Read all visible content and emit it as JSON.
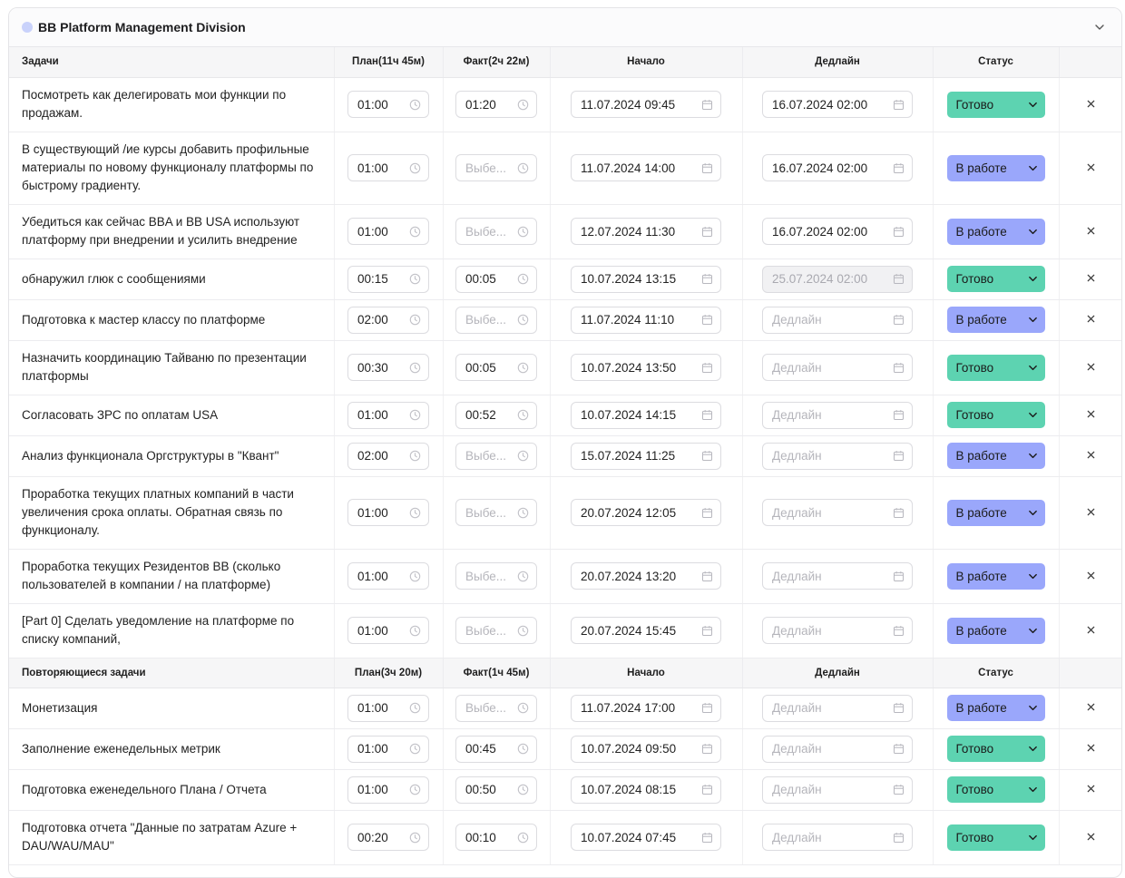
{
  "section": {
    "title": "BB Platform Management Division"
  },
  "colors": {
    "done": "#5dd3b1",
    "work": "#9aa7fb",
    "dot": "#c9d2fb"
  },
  "tasks": {
    "headers": {
      "task": "Задачи",
      "plan": "План(11ч 45м)",
      "fact": "Факт(2ч 22м)",
      "start": "Начало",
      "deadline": "Дедлайн",
      "status": "Статус"
    },
    "rows": [
      {
        "title": "Посмотреть как делегировать мои функции по продажам.",
        "plan": "01:00",
        "fact": "01:20",
        "fact_empty": false,
        "start": "11.07.2024 09:45",
        "deadline": "16.07.2024 02:00",
        "deadline_state": "filled",
        "status": "Готово",
        "status_kind": "done"
      },
      {
        "title": "В существующий /ие курсы добавить профильные материалы по новому функционалу платформы по быстрому градиенту.",
        "plan": "01:00",
        "fact": "Выбе...",
        "fact_empty": true,
        "start": "11.07.2024 14:00",
        "deadline": "16.07.2024 02:00",
        "deadline_state": "filled",
        "status": "В работе",
        "status_kind": "work"
      },
      {
        "title": "Убедиться как сейчас BBA и BB USA используют платформу при внедрении и усилить внедрение",
        "plan": "01:00",
        "fact": "Выбе...",
        "fact_empty": true,
        "start": "12.07.2024 11:30",
        "deadline": "16.07.2024 02:00",
        "deadline_state": "filled",
        "status": "В работе",
        "status_kind": "work"
      },
      {
        "title": "обнаружил глюк с сообщениями",
        "plan": "00:15",
        "fact": "00:05",
        "fact_empty": false,
        "start": "10.07.2024 13:15",
        "deadline": "25.07.2024 02:00",
        "deadline_state": "disabled",
        "status": "Готово",
        "status_kind": "done"
      },
      {
        "title": "Подготовка к мастер классу по платформе",
        "plan": "02:00",
        "fact": "Выбе...",
        "fact_empty": true,
        "start": "11.07.2024 11:10",
        "deadline": "Дедлайн",
        "deadline_state": "placeholder",
        "status": "В работе",
        "status_kind": "work"
      },
      {
        "title": "Назначить координацию Тайваню по презентации платформы",
        "plan": "00:30",
        "fact": "00:05",
        "fact_empty": false,
        "start": "10.07.2024 13:50",
        "deadline": "Дедлайн",
        "deadline_state": "placeholder",
        "status": "Готово",
        "status_kind": "done"
      },
      {
        "title": "Согласовать ЗРС по оплатам USA",
        "plan": "01:00",
        "fact": "00:52",
        "fact_empty": false,
        "start": "10.07.2024 14:15",
        "deadline": "Дедлайн",
        "deadline_state": "placeholder",
        "status": "Готово",
        "status_kind": "done"
      },
      {
        "title": "Анализ функционала Оргструктуры в \"Квант\"",
        "plan": "02:00",
        "fact": "Выбе...",
        "fact_empty": true,
        "start": "15.07.2024 11:25",
        "deadline": "Дедлайн",
        "deadline_state": "placeholder",
        "status": "В работе",
        "status_kind": "work"
      },
      {
        "title": "Проработка текущих платных компаний в части увеличения срока оплаты. Обратная связь по функционалу.",
        "plan": "01:00",
        "fact": "Выбе...",
        "fact_empty": true,
        "start": "20.07.2024 12:05",
        "deadline": "Дедлайн",
        "deadline_state": "placeholder",
        "status": "В работе",
        "status_kind": "work"
      },
      {
        "title": "Проработка текущих Резидентов BB (сколько пользователей в компании / на платформе)",
        "plan": "01:00",
        "fact": "Выбе...",
        "fact_empty": true,
        "start": "20.07.2024 13:20",
        "deadline": "Дедлайн",
        "deadline_state": "placeholder",
        "status": "В работе",
        "status_kind": "work"
      },
      {
        "title": "[Part 0] Сделать уведомление на платформе по списку компаний,",
        "plan": "01:00",
        "fact": "Выбе...",
        "fact_empty": true,
        "start": "20.07.2024 15:45",
        "deadline": "Дедлайн",
        "deadline_state": "placeholder",
        "status": "В работе",
        "status_kind": "work"
      }
    ]
  },
  "recurring": {
    "headers": {
      "task": "Повторяющиеся задачи",
      "plan": "План(3ч 20м)",
      "fact": "Факт(1ч 45м)",
      "start": "Начало",
      "deadline": "Дедлайн",
      "status": "Статус"
    },
    "rows": [
      {
        "title": "Монетизация",
        "plan": "01:00",
        "fact": "Выбе...",
        "fact_empty": true,
        "start": "11.07.2024 17:00",
        "deadline": "Дедлайн",
        "deadline_state": "placeholder",
        "status": "В работе",
        "status_kind": "work"
      },
      {
        "title": "Заполнение еженедельных метрик",
        "plan": "01:00",
        "fact": "00:45",
        "fact_empty": false,
        "start": "10.07.2024 09:50",
        "deadline": "Дедлайн",
        "deadline_state": "placeholder",
        "status": "Готово",
        "status_kind": "done"
      },
      {
        "title": "Подготовка еженедельного Плана / Отчета",
        "plan": "01:00",
        "fact": "00:50",
        "fact_empty": false,
        "start": "10.07.2024 08:15",
        "deadline": "Дедлайн",
        "deadline_state": "placeholder",
        "status": "Готово",
        "status_kind": "done"
      },
      {
        "title": "Подготовка отчета \"Данные по затратам Azure + DAU/WAU/MAU\"",
        "plan": "00:20",
        "fact": "00:10",
        "fact_empty": false,
        "start": "10.07.2024 07:45",
        "deadline": "Дедлайн",
        "deadline_state": "placeholder",
        "status": "Готово",
        "status_kind": "done"
      }
    ]
  }
}
